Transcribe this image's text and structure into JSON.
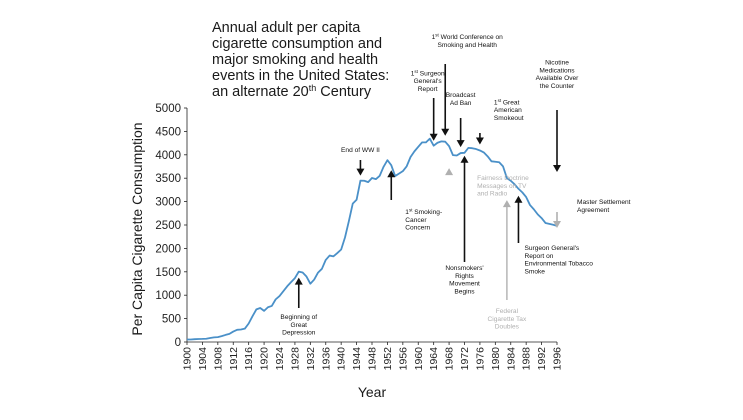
{
  "chart_data": {
    "type": "line",
    "title_lines": [
      "Annual adult per capita",
      "cigarette consumption and",
      "major smoking and health",
      "events in the United States:",
      "an alternate 20th Century"
    ],
    "xlabel": "Year",
    "ylabel": "Per Capita Cigarette Consumption",
    "xlim": [
      1900,
      1996
    ],
    "ylim": [
      0,
      5000
    ],
    "x_ticks": [
      "1900",
      "1904",
      "1908",
      "1912",
      "1916",
      "1920",
      "1924",
      "1928",
      "1932",
      "1936",
      "1940",
      "1944",
      "1948",
      "1952",
      "1956",
      "1960",
      "1964",
      "1968",
      "1972",
      "1976",
      "1980",
      "1984",
      "1988",
      "1992",
      "1996"
    ],
    "y_ticks": [
      "0",
      "500",
      "1000",
      "1500",
      "2000",
      "2500",
      "3000",
      "3500",
      "4000",
      "4500",
      "5000"
    ],
    "grid": false,
    "series": [
      {
        "color": "#4a90c8",
        "x": [
          1900,
          1901,
          1902,
          1903,
          1904,
          1905,
          1906,
          1907,
          1908,
          1909,
          1910,
          1911,
          1912,
          1913,
          1914,
          1915,
          1916,
          1917,
          1918,
          1919,
          1920,
          1921,
          1922,
          1923,
          1924,
          1925,
          1926,
          1927,
          1928,
          1929,
          1930,
          1931,
          1932,
          1933,
          1934,
          1935,
          1936,
          1937,
          1938,
          1939,
          1940,
          1941,
          1942,
          1943,
          1944,
          1945,
          1946,
          1947,
          1948,
          1949,
          1950,
          1951,
          1952,
          1953,
          1954,
          1955,
          1956,
          1957,
          1958,
          1959,
          1960,
          1961,
          1962,
          1963,
          1964,
          1965,
          1966,
          1967,
          1968,
          1969,
          1970,
          1971,
          1972,
          1973,
          1974,
          1975,
          1976,
          1977,
          1978,
          1979,
          1980,
          1981,
          1982,
          1983,
          1984,
          1985,
          1986,
          1987,
          1988,
          1989,
          1990,
          1991,
          1992,
          1993,
          1994,
          1995,
          1996
        ],
        "values": [
          54,
          53,
          60,
          64,
          66,
          70,
          86,
          99,
          105,
          125,
          151,
          173,
          223,
          260,
          267,
          285,
          395,
          551,
          697,
          727,
          665,
          742,
          770,
          911,
          982,
          1085,
          1191,
          1279,
          1366,
          1504,
          1485,
          1399,
          1245,
          1334,
          1483,
          1564,
          1754,
          1847,
          1830,
          1900,
          1976,
          2236,
          2585,
          2956,
          3039,
          3449,
          3446,
          3416,
          3505,
          3480,
          3552,
          3744,
          3886,
          3778,
          3546,
          3597,
          3650,
          3755,
          3953,
          4073,
          4171,
          4266,
          4265,
          4345,
          4194,
          4258,
          4287,
          4280,
          4186,
          3993,
          3985,
          4037,
          4043,
          4148,
          4141,
          4123,
          4092,
          4051,
          3967,
          3861,
          3851,
          3840,
          3753,
          3502,
          3446,
          3370,
          3274,
          3197,
          3096,
          2926,
          2834,
          2727,
          2647,
          2543,
          2524,
          2505,
          2482
        ]
      }
    ],
    "annotations": [
      {
        "id": "great-depression",
        "year": 1929,
        "lines": [
          "Beginning of",
          "Great",
          "Depression"
        ],
        "color": "#111111"
      },
      {
        "id": "end-of-ww2",
        "year": 1945,
        "lines": [
          "End of WW II"
        ],
        "color": "#111111"
      },
      {
        "id": "smoking-cancer",
        "year": 1953,
        "lines": [
          "1st Smoking-",
          "Cancer",
          "Concern"
        ],
        "color": "#111111"
      },
      {
        "id": "fairness-doctrine",
        "year": 1968,
        "lines": [
          "Fairness Doctrine",
          "Messages on TV",
          "and Radio"
        ],
        "color": "#b0b0b0"
      },
      {
        "id": "surgeon-general-report",
        "year": 1964,
        "lines": [
          "1st Surgeon",
          "General's",
          "Report"
        ],
        "color": "#111111"
      },
      {
        "id": "world-conference",
        "year": 1967,
        "lines": [
          "1st World Conference on",
          "Smoking and Health"
        ],
        "color": "#111111"
      },
      {
        "id": "broadcast-ad-ban",
        "year": 1971,
        "lines": [
          "Broadcast",
          "Ad Ban"
        ],
        "color": "#111111"
      },
      {
        "id": "great-american-smokeout",
        "year": 1976,
        "lines": [
          "1st Great",
          "American",
          "Smokeout"
        ],
        "color": "#111111"
      },
      {
        "id": "nonsmokers-rights",
        "year": 1972,
        "lines": [
          "Nonsmokers'",
          "Rights",
          "Movement",
          "Begins"
        ],
        "color": "#111111"
      },
      {
        "id": "federal-tax",
        "year": 1983,
        "lines": [
          "Federal",
          "Cigarette Tax",
          "Doubles"
        ],
        "color": "#b0b0b0"
      },
      {
        "id": "surgeon-general-ets",
        "year": 1986,
        "lines": [
          "Surgeon General's",
          "Report on",
          "Environmental Tobacco",
          "Smoke"
        ],
        "color": "#111111"
      },
      {
        "id": "nicotine-medications",
        "year": 1996,
        "lines": [
          "Nicotine",
          "Medications",
          "Available Over",
          "the Counter"
        ],
        "color": "#111111"
      },
      {
        "id": "master-settlement",
        "year": 1998,
        "lines": [
          "Master Settlement",
          "Agreement"
        ],
        "color": "#b0b0b0"
      }
    ]
  }
}
